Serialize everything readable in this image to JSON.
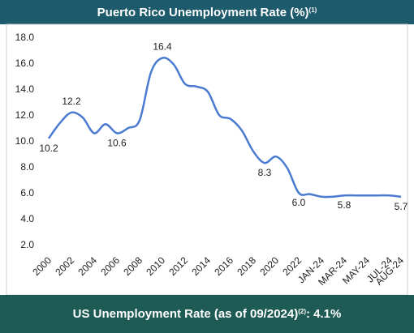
{
  "chart_data": {
    "type": "line",
    "title": "Puerto Rico Unemployment Rate (%)",
    "title_note": "(1)",
    "categories": [
      "2000",
      null,
      "2002",
      null,
      "2004",
      null,
      "2006",
      null,
      "2008",
      null,
      "2010",
      null,
      "2012",
      null,
      "2014",
      null,
      "2016",
      null,
      "2018",
      null,
      "2020",
      null,
      "2022",
      null,
      "JAN-24",
      null,
      "MAR-24",
      null,
      "MAY-24",
      null,
      "JUL-24",
      "AUG-24"
    ],
    "series": [
      {
        "name": "Puerto Rico",
        "color": "#4a7bd0",
        "values": [
          10.2,
          11.4,
          12.2,
          11.8,
          10.6,
          11.3,
          10.6,
          11.0,
          11.6,
          15.3,
          16.4,
          15.9,
          14.4,
          14.2,
          13.8,
          12.0,
          11.7,
          10.8,
          9.2,
          8.3,
          8.8,
          7.9,
          6.0,
          5.9,
          5.7,
          5.7,
          5.8,
          5.8,
          5.8,
          5.8,
          5.8,
          5.7
        ],
        "value_labels": [
          "10.2",
          null,
          "12.2",
          null,
          null,
          null,
          "10.6",
          null,
          null,
          null,
          "16.4",
          null,
          null,
          null,
          null,
          null,
          null,
          null,
          null,
          "8.3",
          null,
          null,
          "6.0",
          null,
          null,
          null,
          "5.8",
          null,
          null,
          null,
          null,
          "5.7"
        ]
      }
    ],
    "ylim": [
      2,
      18
    ],
    "yticks": [
      {
        "value": 2,
        "label": "2.0"
      },
      {
        "value": 4,
        "label": "4.0"
      },
      {
        "value": 6,
        "label": "6.0"
      },
      {
        "value": 8,
        "label": "8.0"
      },
      {
        "value": 10,
        "label": "10.0"
      },
      {
        "value": 12,
        "label": "12.0"
      },
      {
        "value": 14,
        "label": "14.0"
      },
      {
        "value": 16,
        "label": "16.0"
      },
      {
        "value": 18,
        "label": "18.0"
      }
    ],
    "grid": false
  },
  "footer": {
    "text": "US Unemployment Rate (as of 09/2024)",
    "note": "(2)",
    "value_text": ": 4.1%"
  }
}
